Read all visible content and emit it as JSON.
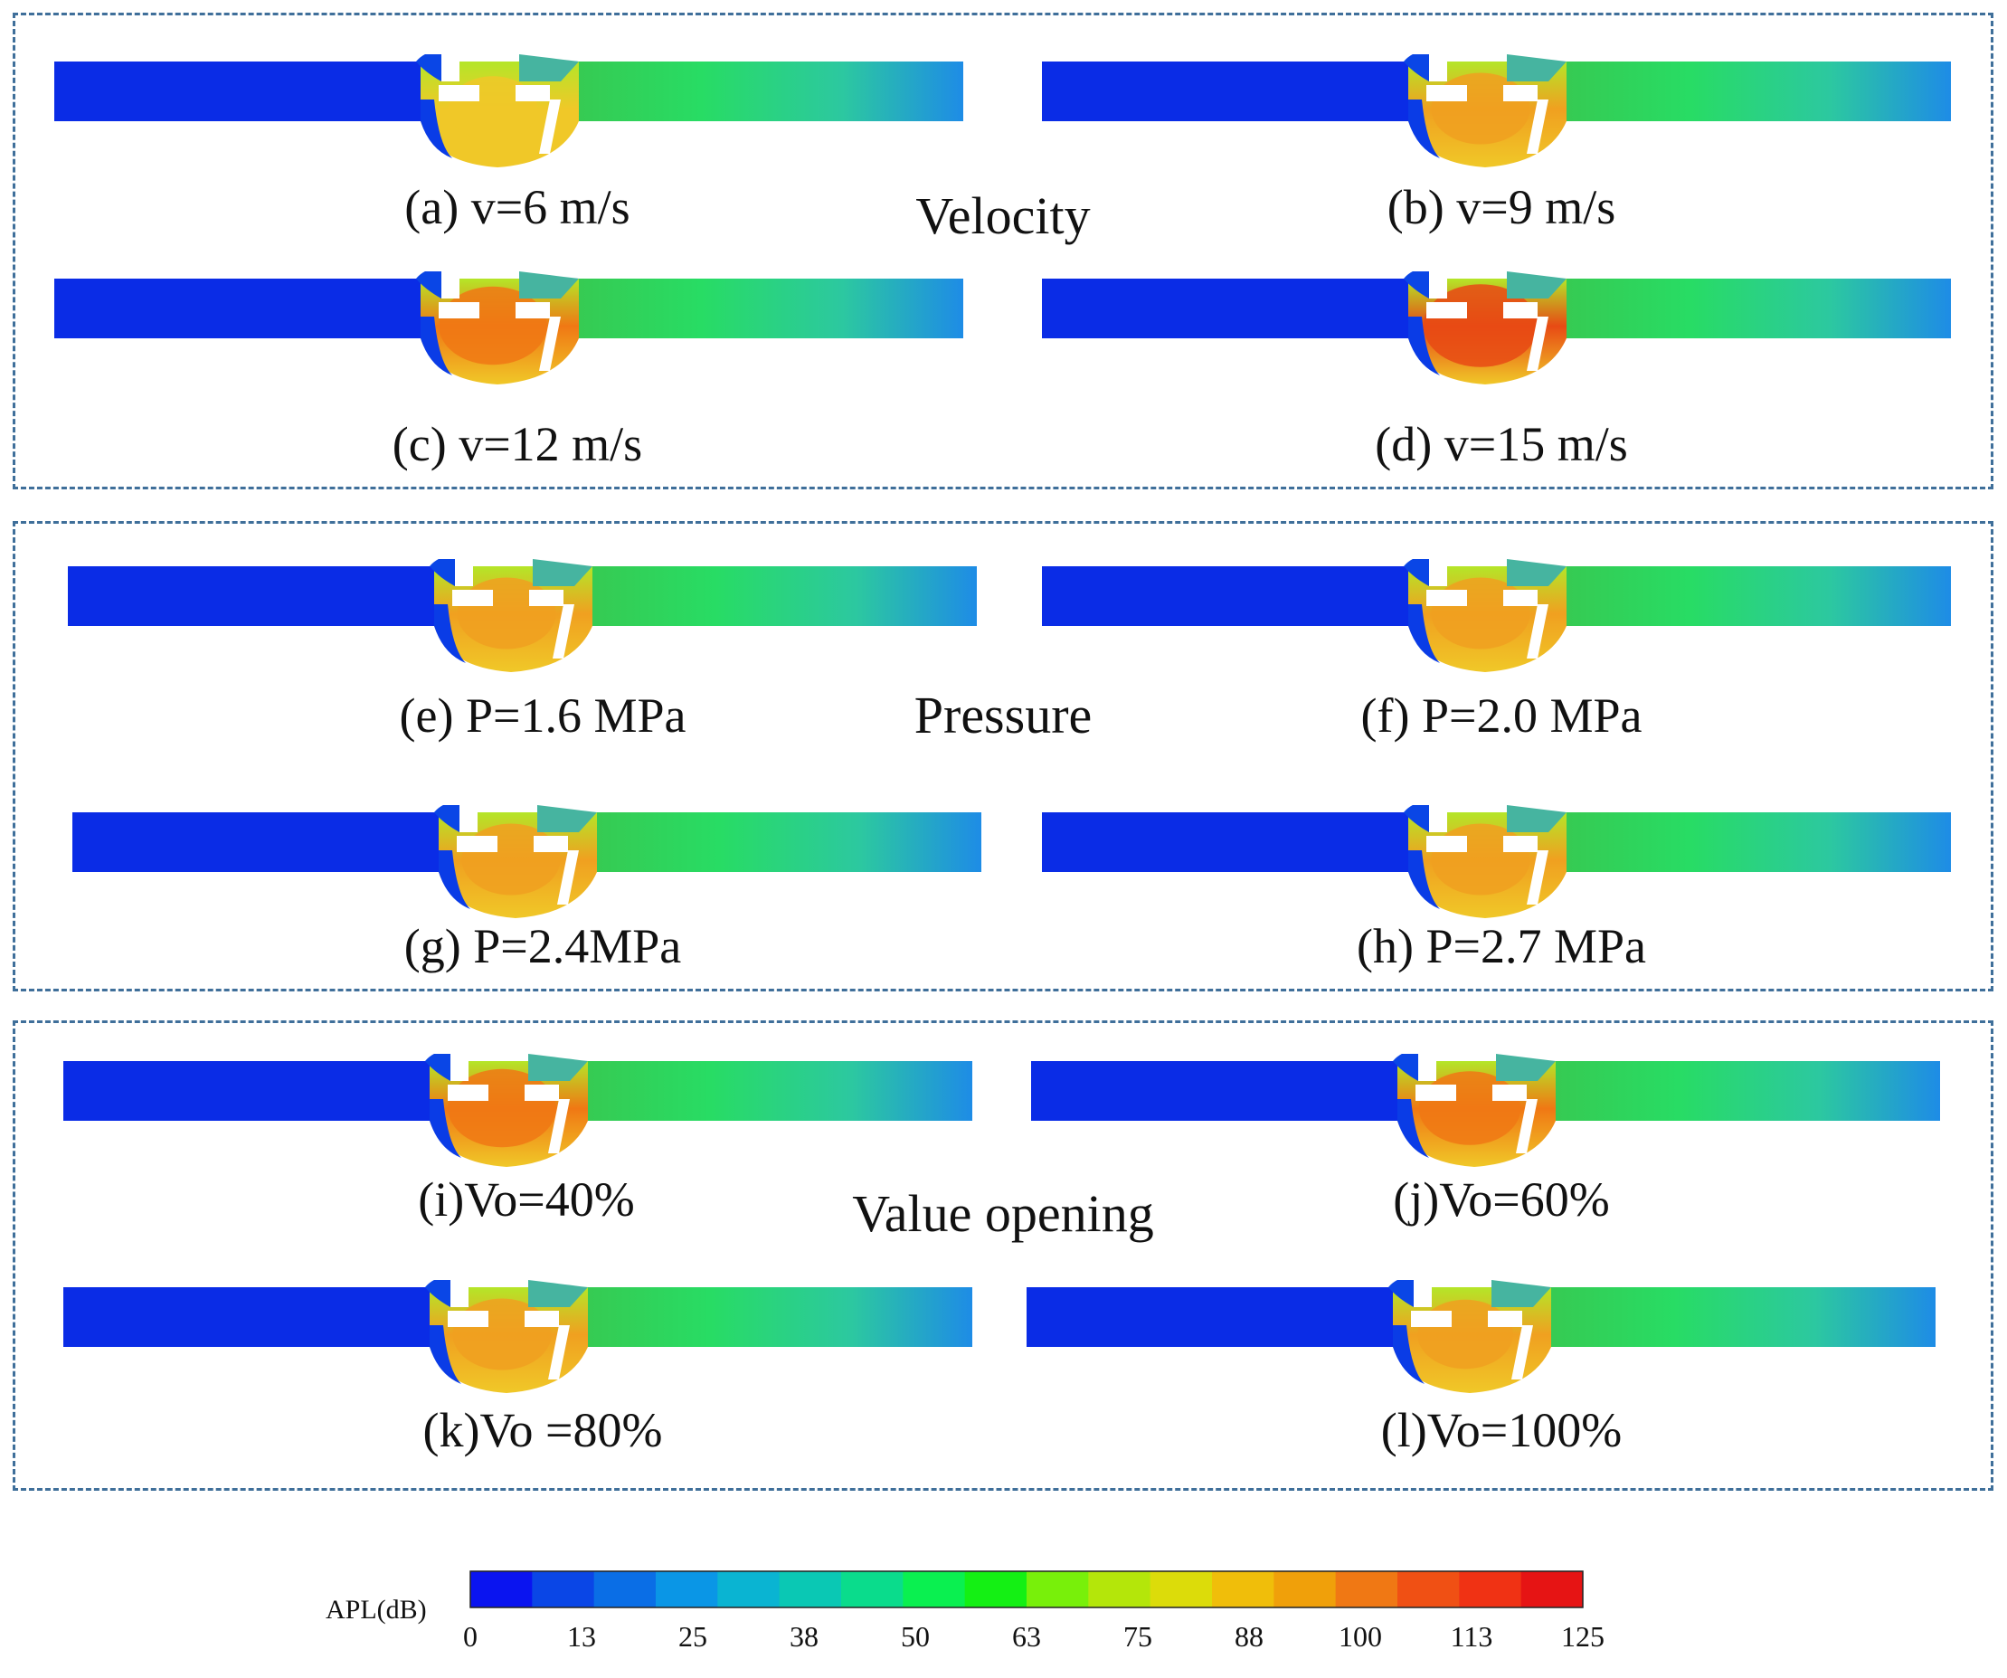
{
  "groups": [
    {
      "title": "Velocity",
      "cases": [
        {
          "label": "(a) v=6 m/s",
          "intensity": 0.55
        },
        {
          "label": "(b) v=9 m/s",
          "intensity": 0.7
        },
        {
          "label": "(c) v=12 m/s",
          "intensity": 0.85
        },
        {
          "label": "(d) v=15 m/s",
          "intensity": 0.95
        }
      ]
    },
    {
      "title": "Pressure",
      "cases": [
        {
          "label": "(e) P=1.6 MPa",
          "intensity": 0.7
        },
        {
          "label": "(f) P=2.0 MPa",
          "intensity": 0.7
        },
        {
          "label": "(g) P=2.4MPa",
          "intensity": 0.7
        },
        {
          "label": "(h) P=2.7 MPa",
          "intensity": 0.7
        }
      ]
    },
    {
      "title": "Value opening",
      "cases": [
        {
          "label": "(i)Vo=40%",
          "intensity": 0.85
        },
        {
          "label": "(j)Vo=60%",
          "intensity": 0.75
        },
        {
          "label": "(k)Vo =80%",
          "intensity": 0.7
        },
        {
          "label": "(l)Vo=100%",
          "intensity": 0.65
        }
      ]
    }
  ],
  "legend": {
    "label": "APL(dB)",
    "ticks": [
      "0",
      "13",
      "25",
      "38",
      "50",
      "63",
      "75",
      "88",
      "100",
      "113",
      "125"
    ],
    "colors": [
      "#0a14f0",
      "#0a46e6",
      "#0a6ee6",
      "#0a96e6",
      "#0ab4d2",
      "#0ac8b4",
      "#0adc8c",
      "#0af050",
      "#14f014",
      "#78f00a",
      "#b4e60a",
      "#dcdc0a",
      "#f0be0a",
      "#f0a00a",
      "#f07814",
      "#f05014",
      "#f03214",
      "#e61414"
    ]
  }
}
